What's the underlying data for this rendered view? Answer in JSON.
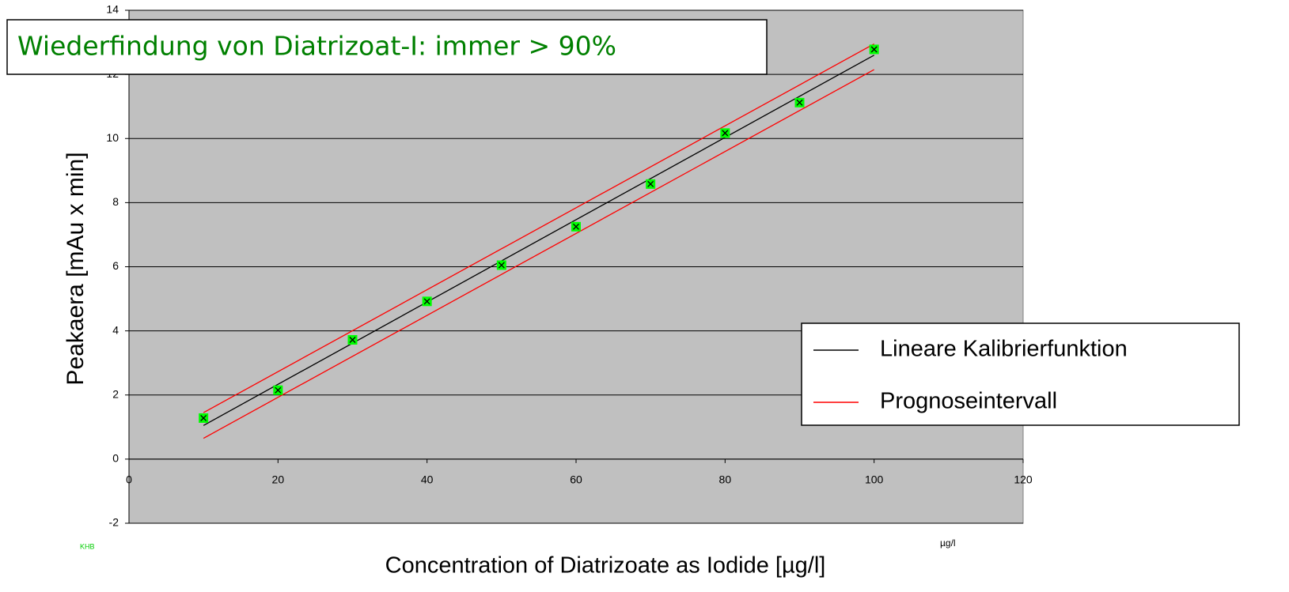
{
  "chart_data": {
    "type": "scatter",
    "title": "Wiederfindung von Diatrizoat-I: immer > 90%",
    "x_label": "Concentration of Diatrizoate as Iodide [µg/l]",
    "y_label": "Peakaera [mAu x min]",
    "note": "KHB",
    "unit_note": "µg/l",
    "x": [
      10,
      20,
      30,
      40,
      50,
      60,
      70,
      80,
      90,
      100
    ],
    "values": [
      1.28,
      2.15,
      3.72,
      4.92,
      6.05,
      7.25,
      8.58,
      10.17,
      11.12,
      12.78
    ],
    "color": "#00ff00",
    "lines": [
      {
        "name": "Lineare Kalibrierfunktion",
        "color": "#000000",
        "x": [
          10,
          100
        ],
        "values": [
          1.05,
          12.6
        ]
      },
      {
        "name": "Prognoseintervall",
        "color": "#ff0000",
        "x": [
          10,
          100
        ],
        "values": [
          1.45,
          12.95
        ],
        "lower": [
          0.65,
          12.15
        ]
      }
    ],
    "xlim": [
      0,
      120
    ],
    "xticks": [
      0,
      20,
      40,
      60,
      80,
      100,
      120
    ],
    "ylim": [
      -2,
      14
    ],
    "yticks": [
      -2,
      0,
      2,
      4,
      6,
      8,
      10,
      12,
      14
    ],
    "grid": true,
    "legend": "right"
  }
}
